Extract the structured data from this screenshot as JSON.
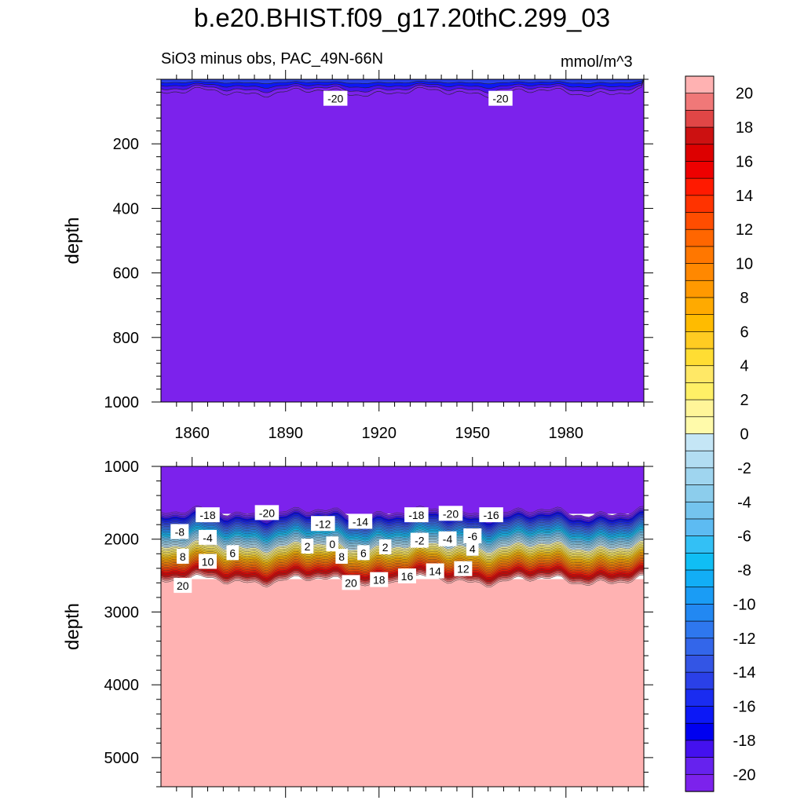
{
  "title": "b.e20.BHIST.f09_g17.20thC.299_03",
  "subtitle": "SiO3 minus obs, PAC_49N-66N",
  "units": "mmol/m^3",
  "chart_data": [
    {
      "type": "heatmap",
      "panel": "upper",
      "ylabel": "depth",
      "ylim": [
        1000,
        0
      ],
      "yticks": [
        200,
        400,
        600,
        800,
        1000
      ],
      "xlim": [
        1850,
        2005
      ],
      "xticks": [
        1860,
        1890,
        1920,
        1950,
        1980
      ],
      "fill_value_below_surface": -21,
      "surface_layer": {
        "depth_range": [
          0,
          40
        ],
        "values_from_top": [
          -14,
          -16,
          -18,
          -20
        ]
      },
      "contour_labels": [
        {
          "x": 1906,
          "y": 60,
          "text": "-20"
        },
        {
          "x": 1959,
          "y": 60,
          "text": "-20"
        }
      ]
    },
    {
      "type": "heatmap",
      "panel": "lower",
      "ylabel": "depth",
      "ylim": [
        5400,
        1000
      ],
      "yticks": [
        1000,
        2000,
        3000,
        4000,
        5000
      ],
      "xlim": [
        1850,
        2005
      ],
      "xticks": [
        1860,
        1890,
        1920,
        1950,
        1980
      ],
      "gradient_zone": {
        "top_depth": 1630,
        "bottom_depth": 2570,
        "from_value": -21,
        "to_value": 21
      },
      "fill_value_above": -21,
      "fill_value_below": 21,
      "contour_labels": [
        {
          "x": 1865,
          "y": 1670,
          "text": "-18"
        },
        {
          "x": 1884,
          "y": 1640,
          "text": "-20"
        },
        {
          "x": 1856,
          "y": 1900,
          "text": "-8"
        },
        {
          "x": 1865,
          "y": 1980,
          "text": "-4"
        },
        {
          "x": 1857,
          "y": 2240,
          "text": "8"
        },
        {
          "x": 1865,
          "y": 2310,
          "text": "10"
        },
        {
          "x": 1873,
          "y": 2190,
          "text": "6"
        },
        {
          "x": 1857,
          "y": 2640,
          "text": "20"
        },
        {
          "x": 1902,
          "y": 1790,
          "text": "-12"
        },
        {
          "x": 1914,
          "y": 1760,
          "text": "-14"
        },
        {
          "x": 1897,
          "y": 2100,
          "text": "2"
        },
        {
          "x": 1905,
          "y": 2070,
          "text": "0"
        },
        {
          "x": 1908,
          "y": 2240,
          "text": "8"
        },
        {
          "x": 1915,
          "y": 2190,
          "text": "6"
        },
        {
          "x": 1922,
          "y": 2110,
          "text": "2"
        },
        {
          "x": 1911,
          "y": 2600,
          "text": "20"
        },
        {
          "x": 1920,
          "y": 2560,
          "text": "18"
        },
        {
          "x": 1929,
          "y": 2510,
          "text": "16"
        },
        {
          "x": 1932,
          "y": 1670,
          "text": "-18"
        },
        {
          "x": 1943,
          "y": 1650,
          "text": "-20"
        },
        {
          "x": 1956,
          "y": 1670,
          "text": "-16"
        },
        {
          "x": 1933,
          "y": 2020,
          "text": "-2"
        },
        {
          "x": 1942,
          "y": 2000,
          "text": "-4"
        },
        {
          "x": 1950,
          "y": 1960,
          "text": "-6"
        },
        {
          "x": 1950,
          "y": 2130,
          "text": "4"
        },
        {
          "x": 1938,
          "y": 2440,
          "text": "14"
        },
        {
          "x": 1947,
          "y": 2410,
          "text": "12"
        }
      ]
    }
  ],
  "colorbar": {
    "label_values": [
      20,
      18,
      16,
      14,
      12,
      10,
      8,
      6,
      4,
      2,
      0,
      -2,
      -4,
      -6,
      -8,
      -10,
      -12,
      -14,
      -16,
      -18,
      -20
    ],
    "colors_top_to_bottom": [
      "#ffb2b2",
      "#f07878",
      "#e04646",
      "#cc1111",
      "#dd0000",
      "#ee0000",
      "#ff1a00",
      "#ff3300",
      "#ff4d00",
      "#ff6600",
      "#ff7700",
      "#ff8800",
      "#ff9900",
      "#ffaa00",
      "#ffbb00",
      "#ffcc22",
      "#ffdd33",
      "#ffe866",
      "#fff066",
      "#fff599",
      "#fffaaa",
      "#c5e6f6",
      "#b2ddf2",
      "#9fd5ef",
      "#8ccdec",
      "#74c4ee",
      "#5dbbf2",
      "#33c0f5",
      "#10bef4",
      "#12aef6",
      "#1a9cf5",
      "#2288f2",
      "#2e77ee",
      "#3366ea",
      "#3355e5",
      "#2a40e8",
      "#1a2cf0",
      "#0c18f6",
      "#0000f0",
      "#4411ee",
      "#6622ee",
      "#7c22ec"
    ]
  }
}
